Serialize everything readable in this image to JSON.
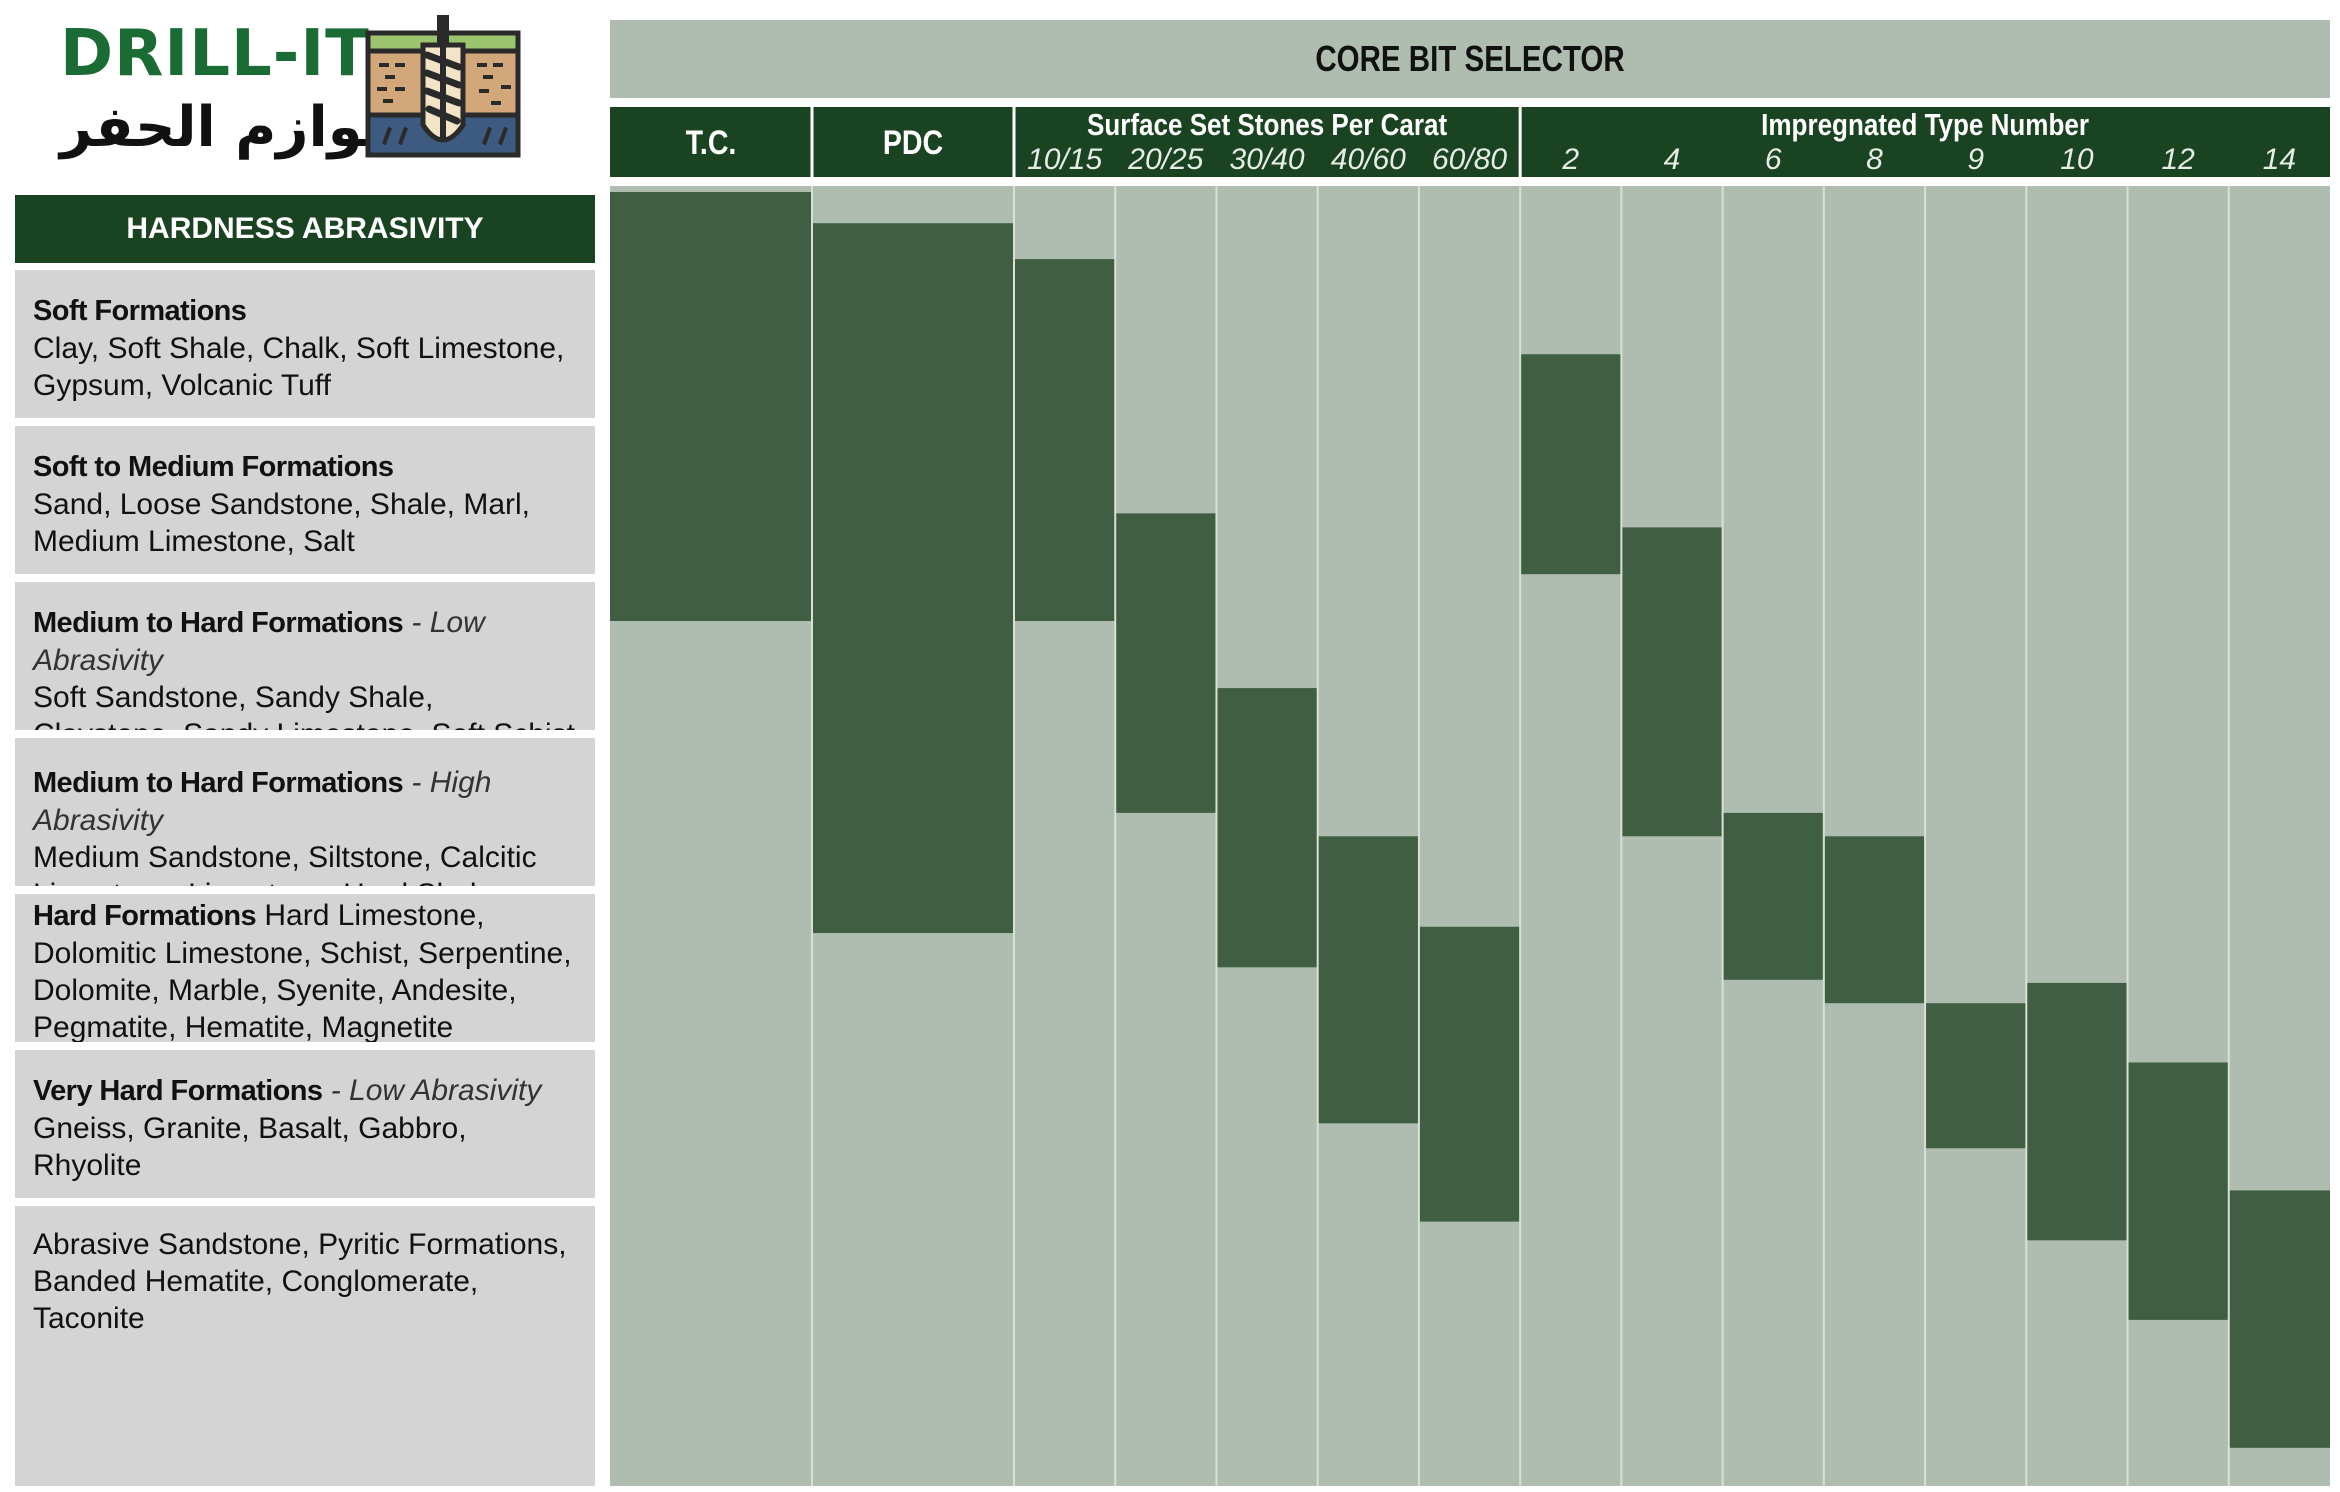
{
  "logo": {
    "name": "DRILL-IT",
    "arabic": "لوازم الحفر"
  },
  "left_panel": {
    "header": "HARDNESS ABRASIVITY",
    "rows": [
      {
        "title": "Soft Formations",
        "qualifier": "",
        "desc": "Clay, Soft Shale, Chalk, Soft Limestone, Gypsum, Volcanic Tuff"
      },
      {
        "title": "Soft to Medium Formations",
        "qualifier": "",
        "desc": "Sand, Loose Sandstone, Shale, Marl, Medium Limestone, Salt"
      },
      {
        "title": "Medium to Hard Formations",
        "qualifier": "Low Abrasivity",
        "desc": "Soft Sandstone, Sandy Shale, Claystone, Sandy Limestone, Soft Schist"
      },
      {
        "title": "Medium to Hard Formations",
        "qualifier": "High Abrasivity",
        "desc": "Medium Sandstone, Siltstone, Calcitic Limestone, Limestone, Hard Shales"
      },
      {
        "title": "Hard Formations",
        "qualifier": "",
        "desc": "Hard Limestone, Dolomitic Limestone, Schist, Serpentine, Dolomite, Marble, Syenite, Andesite, Pegmatite, Hematite, Magnetite"
      },
      {
        "title": "Very Hard Formations",
        "qualifier": "Low Abrasivity",
        "desc": "Gneiss, Granite, Basalt, Gabbro, Rhyolite"
      },
      {
        "title": "",
        "qualifier": "",
        "desc": "Abrasive Sandstone, Pyritic Formations, Banded Hematite, Conglomerate, Taconite"
      }
    ]
  },
  "chart_data": {
    "type": "range-bar",
    "title": "CORE BIT SELECTOR",
    "groups": [
      {
        "label": "T.C.",
        "columns": [
          ""
        ]
      },
      {
        "label": "PDC",
        "columns": [
          ""
        ]
      },
      {
        "label": "Surface Set Stones Per Carat",
        "columns": [
          "10/15",
          "20/25",
          "30/40",
          "40/60",
          "60/80"
        ]
      },
      {
        "label": "Impregnated Type Number",
        "columns": [
          "2",
          "4",
          "6",
          "8",
          "9",
          "10",
          "12",
          "14"
        ]
      }
    ],
    "y_scale": "formation hardness rows 0 (top of Soft Formations) to 7 (bottom of last row)",
    "ylim": [
      0,
      7
    ],
    "ranges": [
      {
        "group": "T.C.",
        "column": "",
        "from": 0,
        "to": 2.75
      },
      {
        "group": "PDC",
        "column": "",
        "from": 0.2,
        "to": 4.75
      },
      {
        "group": "Surface Set Stones Per Carat",
        "column": "10/15",
        "from": 0.43,
        "to": 2.75
      },
      {
        "group": "Surface Set Stones Per Carat",
        "column": "20/25",
        "from": 2.06,
        "to": 3.98
      },
      {
        "group": "Surface Set Stones Per Carat",
        "column": "30/40",
        "from": 3.18,
        "to": 4.97
      },
      {
        "group": "Surface Set Stones Per Carat",
        "column": "40/60",
        "from": 4.13,
        "to": 5.97
      },
      {
        "group": "Surface Set Stones Per Carat",
        "column": "60/80",
        "from": 4.71,
        "to": 6.6
      },
      {
        "group": "Impregnated Type Number",
        "column": "2",
        "from": 1.04,
        "to": 2.45
      },
      {
        "group": "Impregnated Type Number",
        "column": "4",
        "from": 2.15,
        "to": 4.13
      },
      {
        "group": "Impregnated Type Number",
        "column": "6",
        "from": 3.98,
        "to": 5.05
      },
      {
        "group": "Impregnated Type Number",
        "column": "8",
        "from": 4.13,
        "to": 5.2
      },
      {
        "group": "Impregnated Type Number",
        "column": "9",
        "from": 5.2,
        "to": 6.13
      },
      {
        "group": "Impregnated Type Number",
        "column": "10",
        "from": 5.07,
        "to": 6.72
      },
      {
        "group": "Impregnated Type Number",
        "column": "12",
        "from": 5.58,
        "to": 7.23
      },
      {
        "group": "Impregnated Type Number",
        "column": "14",
        "from": 6.4,
        "to": 8.05
      }
    ],
    "colors": {
      "background": "#afbdb0",
      "bar": "#3f5e42",
      "header": "#1a4322",
      "header_text": "#ffffff",
      "title_text": "#111111",
      "sub_text": "#e6ece6",
      "divider": "#d8e0d8"
    },
    "grid": true
  }
}
